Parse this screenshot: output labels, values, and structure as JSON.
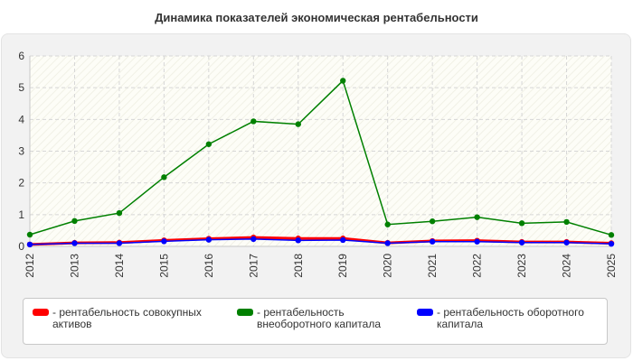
{
  "chart_data": {
    "type": "line",
    "title": "Динамика показателей экономическая рентабельности",
    "x": [
      "2012",
      "2013",
      "2014",
      "2015",
      "2016",
      "2017",
      "2018",
      "2019",
      "2020",
      "2021",
      "2022",
      "2023",
      "2024",
      "2025"
    ],
    "yticks": [
      "0",
      "1",
      "2",
      "3",
      "4",
      "5",
      "6"
    ],
    "ylim": [
      0,
      6
    ],
    "grid": true,
    "legend_position": "bottom",
    "series": [
      {
        "name": "- рентабельность совокупных активов",
        "color": "#ff0000",
        "values": [
          0.06,
          0.11,
          0.12,
          0.19,
          0.24,
          0.28,
          0.25,
          0.25,
          0.11,
          0.17,
          0.18,
          0.14,
          0.14,
          0.1
        ]
      },
      {
        "name": "- рентабельность внеоборотного капитала",
        "color": "#008000",
        "values": [
          0.37,
          0.8,
          1.05,
          2.18,
          3.22,
          3.94,
          3.85,
          5.22,
          0.69,
          0.79,
          0.92,
          0.73,
          0.77,
          0.36
        ]
      },
      {
        "name": "- рентабельность оборотного капитала",
        "color": "#0000ff",
        "values": [
          0.06,
          0.1,
          0.1,
          0.16,
          0.21,
          0.23,
          0.19,
          0.2,
          0.1,
          0.15,
          0.15,
          0.12,
          0.12,
          0.08
        ]
      }
    ]
  }
}
